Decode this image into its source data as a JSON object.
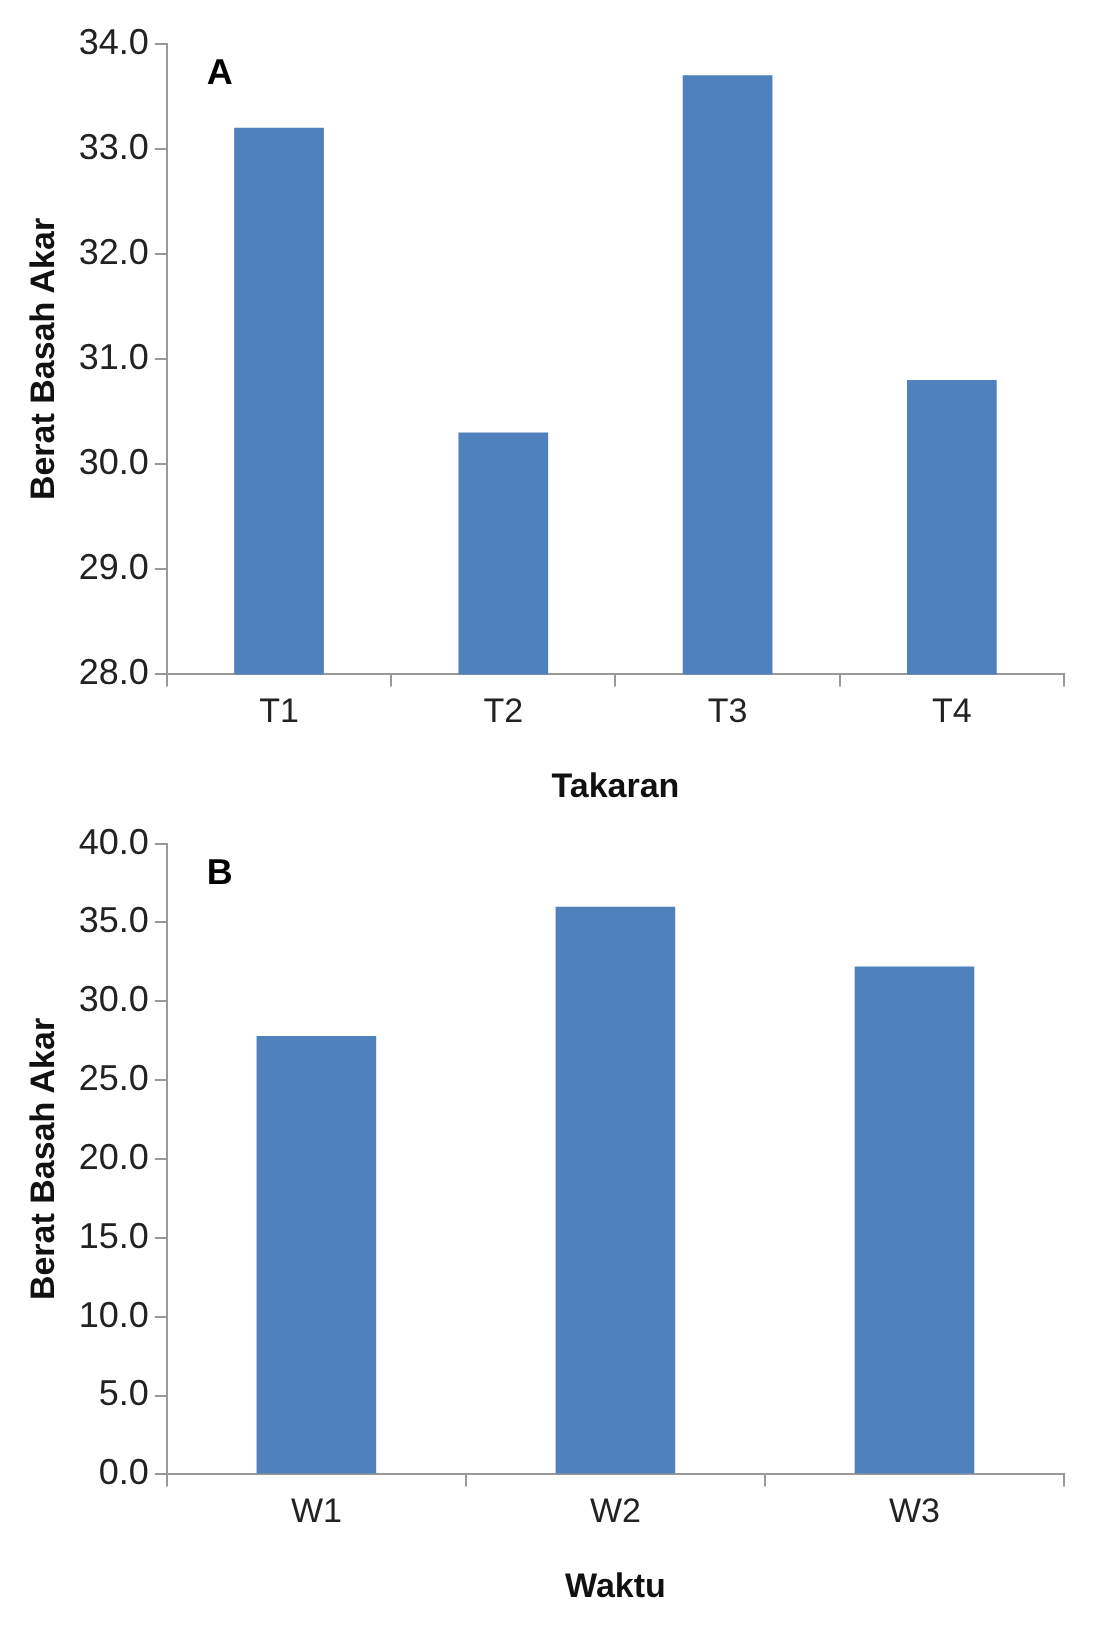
{
  "chart_data": [
    {
      "type": "bar",
      "title": "A",
      "categories": [
        "T1",
        "T2",
        "T3",
        "T4"
      ],
      "values": [
        33.2,
        30.3,
        33.7,
        30.8
      ],
      "color": "#4f81bd",
      "xlabel": "Takaran",
      "ylabel": "Berat Basah Akar",
      "ylim": [
        28,
        34
      ],
      "yticks": [
        {
          "value": 28,
          "label": "28.0"
        },
        {
          "value": 29,
          "label": "29.0"
        },
        {
          "value": 30,
          "label": "30.0"
        },
        {
          "value": 31,
          "label": "31.0"
        },
        {
          "value": 32,
          "label": "32.0"
        },
        {
          "value": 33,
          "label": "33.0"
        },
        {
          "value": 34,
          "label": "34.0"
        }
      ],
      "grid": false,
      "legend": false
    },
    {
      "type": "bar",
      "title": "B",
      "categories": [
        "W1",
        "W2",
        "W3"
      ],
      "values": [
        27.8,
        36.0,
        32.2
      ],
      "color": "#4f81bd",
      "xlabel": "Waktu",
      "ylabel": "Berat Basah Akar",
      "ylim": [
        0,
        40
      ],
      "yticks": [
        {
          "value": 0,
          "label": "0.0"
        },
        {
          "value": 5,
          "label": "5.0"
        },
        {
          "value": 10,
          "label": "10.0"
        },
        {
          "value": 15,
          "label": "15.0"
        },
        {
          "value": 20,
          "label": "20.0"
        },
        {
          "value": 25,
          "label": "25.0"
        },
        {
          "value": 30,
          "label": "30.0"
        },
        {
          "value": 35,
          "label": "35.0"
        },
        {
          "value": 40,
          "label": "40.0"
        }
      ],
      "grid": false,
      "legend": false
    }
  ]
}
